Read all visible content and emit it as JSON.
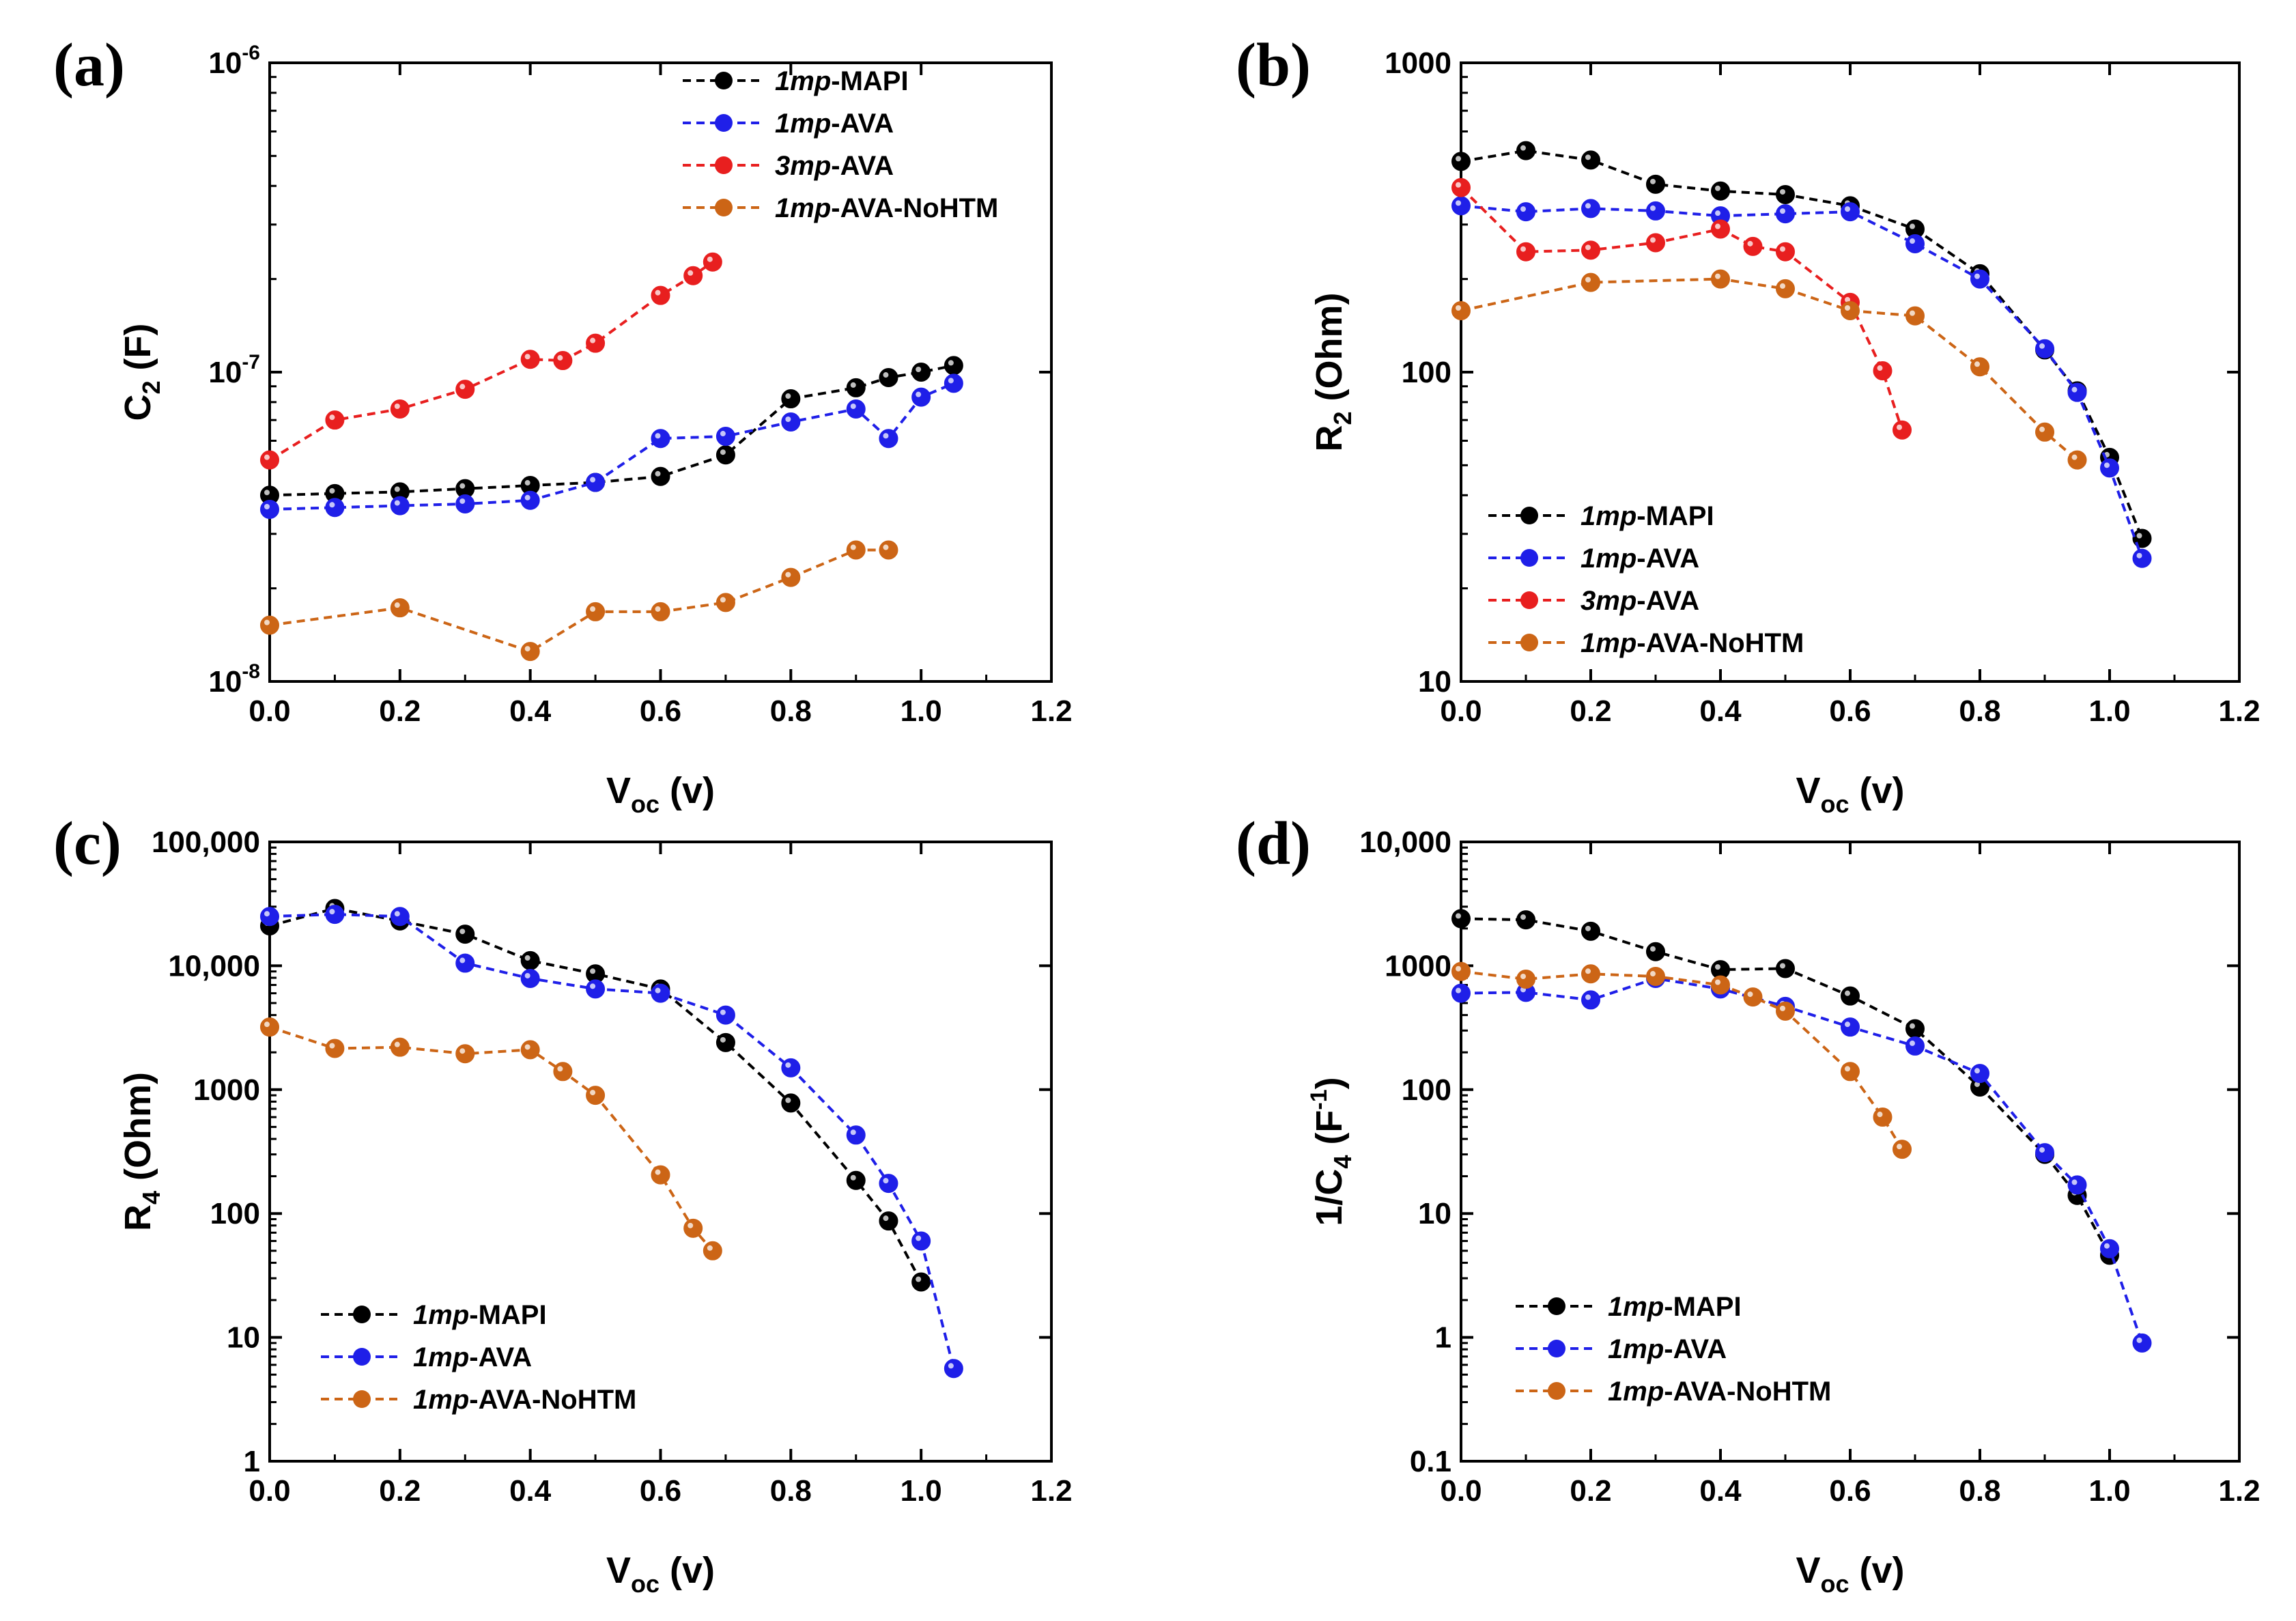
{
  "figure": {
    "panel_labels": [
      "(a)",
      "(b)",
      "(c)",
      "(d)"
    ],
    "colors": {
      "1mp-MAPI": "#000000",
      "1mp-AVA": "#1f1fe8",
      "3mp-AVA": "#e81f1f",
      "1mp-AVA-NoHTM": "#cc6516"
    }
  },
  "chart_data": [
    {
      "panel": "(a)",
      "type": "line",
      "xscale": "linear",
      "yscale": "log",
      "xlabel": "V",
      "xlabel_sub": "oc",
      "xlabel_suffix": " (v)",
      "ylabel": "C",
      "ylabel_sub": "2",
      "ylabel_suffix": " (F)",
      "xlim": [
        0.0,
        1.2
      ],
      "ylim": [
        1e-08,
        1e-06
      ],
      "xticks": [
        0.0,
        0.2,
        0.4,
        0.6,
        0.8,
        1.0,
        1.2
      ],
      "xtick_labels": [
        "0.0",
        "0.2",
        "0.4",
        "0.6",
        "0.8",
        "1.0",
        "1.2"
      ],
      "yticks": [
        1e-08,
        1e-07,
        1e-06
      ],
      "ytick_labels": [
        {
          "base": "10",
          "exp": "-8"
        },
        {
          "base": "10",
          "exp": "-7"
        },
        {
          "base": "10",
          "exp": "-6"
        }
      ],
      "legend_position": "top-right",
      "series": [
        {
          "id": "1mp-MAPI",
          "name_italic": "1mp",
          "name_rest": "-MAPI",
          "x": [
            0.0,
            0.1,
            0.2,
            0.3,
            0.4,
            0.5,
            0.6,
            0.7,
            0.8,
            0.9,
            0.95,
            1.0,
            1.05
          ],
          "y": [
            4e-08,
            4.05e-08,
            4.1e-08,
            4.2e-08,
            4.3e-08,
            4.4e-08,
            4.6e-08,
            5.4e-08,
            8.2e-08,
            8.9e-08,
            9.6e-08,
            1e-07,
            1.05e-07
          ]
        },
        {
          "id": "1mp-AVA",
          "name_italic": "1mp",
          "name_rest": "-AVA",
          "x": [
            0.0,
            0.1,
            0.2,
            0.3,
            0.4,
            0.5,
            0.6,
            0.7,
            0.8,
            0.9,
            0.95,
            1.0,
            1.05
          ],
          "y": [
            3.6e-08,
            3.65e-08,
            3.7e-08,
            3.75e-08,
            3.85e-08,
            4.4e-08,
            6.1e-08,
            6.2e-08,
            6.9e-08,
            7.6e-08,
            6.1e-08,
            8.3e-08,
            9.2e-08
          ]
        },
        {
          "id": "3mp-AVA",
          "name_italic": "3mp",
          "name_rest": "-AVA",
          "x": [
            0.0,
            0.1,
            0.2,
            0.3,
            0.4,
            0.45,
            0.5,
            0.6,
            0.65,
            0.68
          ],
          "y": [
            5.2e-08,
            7e-08,
            7.6e-08,
            8.8e-08,
            1.1e-07,
            1.09e-07,
            1.24e-07,
            1.77e-07,
            2.05e-07,
            2.27e-07
          ]
        },
        {
          "id": "1mp-AVA-NoHTM",
          "name_italic": "1mp",
          "name_rest": "-AVA-NoHTM",
          "x": [
            0.0,
            0.2,
            0.4,
            0.5,
            0.6,
            0.7,
            0.8,
            0.9,
            0.95
          ],
          "y": [
            1.52e-08,
            1.73e-08,
            1.25e-08,
            1.68e-08,
            1.68e-08,
            1.8e-08,
            2.17e-08,
            2.66e-08,
            2.66e-08
          ]
        }
      ]
    },
    {
      "panel": "(b)",
      "type": "line",
      "xscale": "linear",
      "yscale": "log",
      "xlabel": "V",
      "xlabel_sub": "oc",
      "xlabel_suffix": " (v)",
      "ylabel": "R",
      "ylabel_sub": "2",
      "ylabel_suffix": " (Ohm)",
      "xlim": [
        0.0,
        1.2
      ],
      "ylim": [
        10,
        1000
      ],
      "xticks": [
        0.0,
        0.2,
        0.4,
        0.6,
        0.8,
        1.0,
        1.2
      ],
      "xtick_labels": [
        "0.0",
        "0.2",
        "0.4",
        "0.6",
        "0.8",
        "1.0",
        "1.2"
      ],
      "yticks": [
        10,
        100,
        1000
      ],
      "ytick_labels": [
        "10",
        "100",
        "1000"
      ],
      "legend_position": "bottom-left",
      "series": [
        {
          "id": "1mp-MAPI",
          "name_italic": "1mp",
          "name_rest": "-MAPI",
          "x": [
            0.0,
            0.1,
            0.2,
            0.3,
            0.4,
            0.5,
            0.6,
            0.7,
            0.8,
            0.9,
            0.95,
            1.0,
            1.05
          ],
          "y": [
            480,
            520,
            485,
            405,
            385,
            375,
            345,
            290,
            208,
            118,
            87,
            53,
            29
          ]
        },
        {
          "id": "1mp-AVA",
          "name_italic": "1mp",
          "name_rest": "-AVA",
          "x": [
            0.0,
            0.1,
            0.2,
            0.3,
            0.4,
            0.5,
            0.6,
            0.7,
            0.8,
            0.9,
            0.95,
            1.0,
            1.05
          ],
          "y": [
            345,
            330,
            338,
            332,
            320,
            325,
            330,
            260,
            200,
            119,
            86,
            49,
            25
          ]
        },
        {
          "id": "3mp-AVA",
          "name_italic": "3mp",
          "name_rest": "-AVA",
          "x": [
            0.0,
            0.1,
            0.2,
            0.3,
            0.4,
            0.45,
            0.5,
            0.6,
            0.65,
            0.68
          ],
          "y": [
            395,
            245,
            248,
            262,
            290,
            255,
            245,
            168,
            101,
            65
          ]
        },
        {
          "id": "1mp-AVA-NoHTM",
          "name_italic": "1mp",
          "name_rest": "-AVA-NoHTM",
          "x": [
            0.0,
            0.2,
            0.4,
            0.5,
            0.6,
            0.7,
            0.8,
            0.9,
            0.95
          ],
          "y": [
            158,
            195,
            200,
            186,
            158,
            152,
            104,
            64,
            52
          ]
        }
      ]
    },
    {
      "panel": "(c)",
      "type": "line",
      "xscale": "linear",
      "yscale": "log",
      "xlabel": "V",
      "xlabel_sub": "oc",
      "xlabel_suffix": " (v)",
      "ylabel": "R",
      "ylabel_sub": "4",
      "ylabel_suffix": " (Ohm)",
      "xlim": [
        0.0,
        1.2
      ],
      "ylim": [
        1,
        100000
      ],
      "xticks": [
        0.0,
        0.2,
        0.4,
        0.6,
        0.8,
        1.0,
        1.2
      ],
      "xtick_labels": [
        "0.0",
        "0.2",
        "0.4",
        "0.6",
        "0.8",
        "1.0",
        "1.2"
      ],
      "yticks": [
        1,
        10,
        100,
        1000,
        10000,
        100000
      ],
      "ytick_labels": [
        "1",
        "10",
        "100",
        "1000",
        "10,000",
        "100,000"
      ],
      "legend_position": "bottom-left",
      "series": [
        {
          "id": "1mp-MAPI",
          "name_italic": "1mp",
          "name_rest": "-MAPI",
          "x": [
            0.0,
            0.1,
            0.2,
            0.3,
            0.4,
            0.5,
            0.6,
            0.7,
            0.8,
            0.9,
            0.95,
            1.0
          ],
          "y": [
            21000,
            29000,
            23000,
            18000,
            11000,
            8600,
            6500,
            2400,
            780,
            185,
            87,
            28
          ]
        },
        {
          "id": "1mp-AVA",
          "name_italic": "1mp",
          "name_rest": "-AVA",
          "x": [
            0.0,
            0.1,
            0.2,
            0.3,
            0.4,
            0.5,
            0.6,
            0.7,
            0.8,
            0.9,
            0.95,
            1.0,
            1.05
          ],
          "y": [
            25000,
            26000,
            25000,
            10500,
            7900,
            6500,
            6000,
            4000,
            1500,
            430,
            175,
            60,
            5.6
          ]
        },
        {
          "id": "1mp-AVA-NoHTM",
          "name_italic": "1mp",
          "name_rest": "-AVA-NoHTM",
          "x": [
            0.0,
            0.1,
            0.2,
            0.3,
            0.4,
            0.45,
            0.5,
            0.6,
            0.65,
            0.68
          ],
          "y": [
            3200,
            2150,
            2200,
            1950,
            2100,
            1400,
            900,
            205,
            76,
            50
          ]
        }
      ]
    },
    {
      "panel": "(d)",
      "type": "line",
      "xscale": "linear",
      "yscale": "log",
      "xlabel": "V",
      "xlabel_sub": "oc",
      "xlabel_suffix": " (v)",
      "ylabel": "1/C",
      "ylabel_sub": "4",
      "ylabel_suffix": " (F",
      "ylabel_sup": "-1",
      "ylabel_close": ")",
      "xlim": [
        0.0,
        1.2
      ],
      "ylim": [
        0.1,
        10000
      ],
      "xticks": [
        0.0,
        0.2,
        0.4,
        0.6,
        0.8,
        1.0,
        1.2
      ],
      "xtick_labels": [
        "0.0",
        "0.2",
        "0.4",
        "0.6",
        "0.8",
        "1.0",
        "1.2"
      ],
      "yticks": [
        0.1,
        1,
        10,
        100,
        1000,
        10000
      ],
      "ytick_labels": [
        "0.1",
        "1",
        "10",
        "100",
        "1000",
        "10,000"
      ],
      "legend_position": "bottom-left",
      "series": [
        {
          "id": "1mp-MAPI",
          "name_italic": "1mp",
          "name_rest": "-MAPI",
          "x": [
            0.0,
            0.1,
            0.2,
            0.3,
            0.4,
            0.5,
            0.6,
            0.7,
            0.8,
            0.9,
            0.95,
            1.0
          ],
          "y": [
            2400,
            2350,
            1900,
            1300,
            930,
            950,
            570,
            310,
            105,
            30,
            14,
            4.6
          ]
        },
        {
          "id": "1mp-AVA",
          "name_italic": "1mp",
          "name_rest": "-AVA",
          "x": [
            0.0,
            0.1,
            0.2,
            0.3,
            0.4,
            0.5,
            0.6,
            0.7,
            0.8,
            0.9,
            0.95,
            1.0,
            1.05
          ],
          "y": [
            600,
            610,
            530,
            790,
            650,
            470,
            320,
            225,
            135,
            31,
            17,
            5.2,
            0.9
          ]
        },
        {
          "id": "1mp-AVA-NoHTM",
          "name_italic": "1mp",
          "name_rest": "-AVA-NoHTM",
          "x": [
            0.0,
            0.1,
            0.2,
            0.3,
            0.4,
            0.45,
            0.5,
            0.6,
            0.65,
            0.68
          ],
          "y": [
            900,
            780,
            860,
            820,
            700,
            560,
            430,
            140,
            60,
            33
          ]
        }
      ]
    }
  ]
}
